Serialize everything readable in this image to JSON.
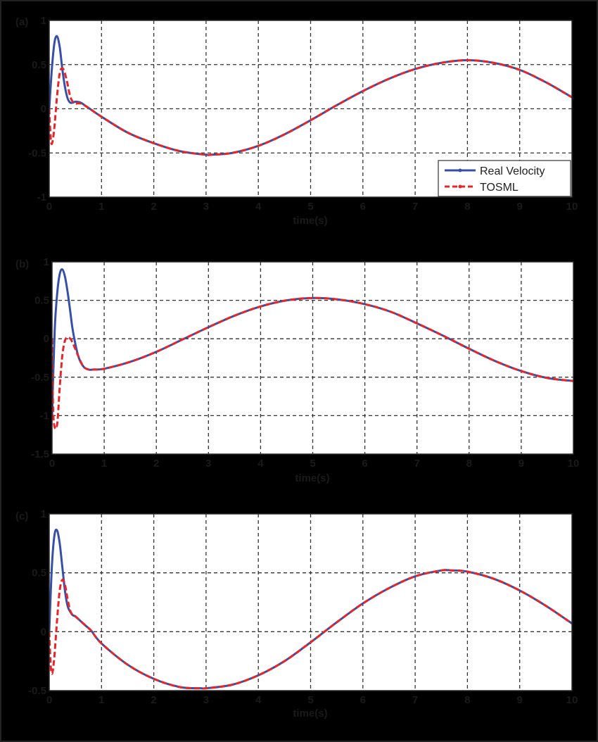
{
  "chart_data": [
    {
      "type": "line",
      "panel_label": "(a)",
      "title": "",
      "xlabel": "time(s)",
      "ylabel": "",
      "xlim": [
        0,
        10
      ],
      "ylim": [
        -1,
        1
      ],
      "xticks": [
        "0",
        "1",
        "2",
        "3",
        "4",
        "5",
        "6",
        "7",
        "8",
        "9",
        "10"
      ],
      "yticks": [
        "-1",
        "-0.5",
        "0",
        "0.5",
        "1"
      ],
      "grid": true,
      "legend": {
        "position": "lower right",
        "entries": [
          "Real Velocity",
          "TOSML"
        ]
      },
      "series": [
        {
          "name": "Real Velocity",
          "color": "#3650a8",
          "style": "solid",
          "x": [
            0,
            0.05,
            0.1,
            0.15,
            0.2,
            0.25,
            0.3,
            0.35,
            0.4,
            0.45,
            0.5,
            0.6,
            0.7,
            0.8,
            1,
            1.5,
            2,
            2.5,
            3,
            3.1,
            3.5,
            4,
            4.5,
            5,
            5.5,
            6,
            6.5,
            7,
            7.5,
            8,
            8.5,
            9,
            9.5,
            10
          ],
          "y": [
            0,
            0.45,
            0.75,
            0.82,
            0.7,
            0.45,
            0.25,
            0.12,
            0.07,
            0.07,
            0.08,
            0.07,
            0.03,
            -0.01,
            -0.09,
            -0.27,
            -0.39,
            -0.48,
            -0.52,
            -0.52,
            -0.5,
            -0.42,
            -0.29,
            -0.13,
            0.04,
            0.2,
            0.34,
            0.45,
            0.52,
            0.55,
            0.52,
            0.44,
            0.3,
            0.13
          ]
        },
        {
          "name": "TOSML",
          "color": "#e8262a",
          "style": "dashed",
          "x": [
            0,
            0.03,
            0.06,
            0.1,
            0.15,
            0.2,
            0.25,
            0.3,
            0.35,
            0.4,
            0.45,
            0.5,
            0.6,
            0.7,
            0.8,
            1,
            1.5,
            2,
            2.5,
            3,
            3.1,
            3.5,
            4,
            4.5,
            5,
            5.5,
            6,
            6.5,
            7,
            7.5,
            8,
            8.5,
            9,
            9.5,
            10
          ],
          "y": [
            0,
            -0.35,
            -0.38,
            -0.2,
            0.15,
            0.4,
            0.46,
            0.4,
            0.28,
            0.14,
            0.08,
            0.06,
            0.06,
            0.03,
            -0.01,
            -0.09,
            -0.27,
            -0.39,
            -0.48,
            -0.52,
            -0.52,
            -0.5,
            -0.42,
            -0.29,
            -0.13,
            0.04,
            0.2,
            0.34,
            0.45,
            0.52,
            0.55,
            0.52,
            0.44,
            0.3,
            0.13
          ]
        }
      ]
    },
    {
      "type": "line",
      "panel_label": "(b)",
      "title": "",
      "xlabel": "time(s)",
      "ylabel": "",
      "xlim": [
        0,
        10
      ],
      "ylim": [
        -1.5,
        1
      ],
      "xticks": [
        "0",
        "1",
        "2",
        "3",
        "4",
        "5",
        "6",
        "7",
        "8",
        "9",
        "10"
      ],
      "yticks": [
        "-1.5",
        "-1",
        "-0.5",
        "0",
        "0.5",
        "1"
      ],
      "grid": true,
      "series": [
        {
          "name": "Real Velocity",
          "color": "#3650a8",
          "style": "solid",
          "x": [
            0,
            0.05,
            0.1,
            0.15,
            0.2,
            0.25,
            0.3,
            0.35,
            0.4,
            0.5,
            0.6,
            0.7,
            0.8,
            1,
            1.5,
            2,
            2.5,
            3,
            3.5,
            4,
            4.5,
            5,
            5.5,
            6,
            6.5,
            7,
            7.5,
            8,
            8.5,
            9,
            9.5,
            10
          ],
          "y": [
            -1.0,
            0.1,
            0.6,
            0.85,
            0.9,
            0.8,
            0.6,
            0.35,
            0.1,
            -0.22,
            -0.36,
            -0.4,
            -0.4,
            -0.39,
            -0.3,
            -0.17,
            -0.01,
            0.15,
            0.3,
            0.42,
            0.5,
            0.53,
            0.51,
            0.45,
            0.35,
            0.2,
            0.04,
            -0.13,
            -0.29,
            -0.42,
            -0.51,
            -0.55
          ]
        },
        {
          "name": "TOSML",
          "color": "#e8262a",
          "style": "dashed",
          "x": [
            0,
            0.02,
            0.05,
            0.1,
            0.15,
            0.2,
            0.25,
            0.3,
            0.35,
            0.4,
            0.5,
            0.6,
            0.7,
            0.8,
            1,
            1.5,
            2,
            2.5,
            3,
            3.5,
            4,
            4.5,
            5,
            5.5,
            6,
            6.5,
            7,
            7.5,
            8,
            8.5,
            9,
            9.5,
            10
          ],
          "y": [
            0,
            -0.9,
            -1.15,
            -1.1,
            -0.6,
            -0.2,
            -0.02,
            0.02,
            0.0,
            -0.06,
            -0.22,
            -0.36,
            -0.4,
            -0.4,
            -0.39,
            -0.3,
            -0.17,
            -0.01,
            0.15,
            0.3,
            0.42,
            0.5,
            0.53,
            0.51,
            0.45,
            0.35,
            0.2,
            0.04,
            -0.13,
            -0.29,
            -0.42,
            -0.51,
            -0.55
          ]
        }
      ]
    },
    {
      "type": "line",
      "panel_label": "(c)",
      "title": "",
      "xlabel": "time(s)",
      "ylabel": "",
      "xlim": [
        0,
        10
      ],
      "ylim": [
        -0.5,
        1
      ],
      "xticks": [
        "0",
        "1",
        "2",
        "3",
        "4",
        "5",
        "6",
        "7",
        "8",
        "9",
        "10"
      ],
      "yticks": [
        "-0.5",
        "0",
        "0.5",
        "1"
      ],
      "grid": true,
      "series": [
        {
          "name": "Real Velocity",
          "color": "#3650a8",
          "style": "solid",
          "x": [
            0,
            0.05,
            0.1,
            0.15,
            0.2,
            0.25,
            0.3,
            0.35,
            0.4,
            0.45,
            0.5,
            0.6,
            0.7,
            0.8,
            1,
            1.5,
            2,
            2.5,
            2.9,
            3,
            3.5,
            4,
            4.5,
            5,
            5.5,
            6,
            6.5,
            7,
            7.5,
            7.7,
            8,
            8.5,
            9,
            9.5,
            10
          ],
          "y": [
            0,
            0.55,
            0.82,
            0.86,
            0.75,
            0.55,
            0.35,
            0.22,
            0.17,
            0.14,
            0.13,
            0.09,
            0.05,
            0.01,
            -0.1,
            -0.28,
            -0.4,
            -0.47,
            -0.48,
            -0.48,
            -0.45,
            -0.37,
            -0.25,
            -0.09,
            0.08,
            0.24,
            0.37,
            0.47,
            0.52,
            0.52,
            0.51,
            0.45,
            0.35,
            0.22,
            0.07
          ]
        },
        {
          "name": "TOSML",
          "color": "#e8262a",
          "style": "dashed",
          "x": [
            0,
            0.03,
            0.06,
            0.1,
            0.15,
            0.2,
            0.25,
            0.3,
            0.35,
            0.4,
            0.45,
            0.5,
            0.6,
            0.7,
            0.8,
            1,
            1.5,
            2,
            2.5,
            2.9,
            3,
            3.5,
            4,
            4.5,
            5,
            5.5,
            6,
            6.5,
            7,
            7.5,
            7.7,
            8,
            8.5,
            9,
            9.5,
            10
          ],
          "y": [
            0,
            -0.3,
            -0.35,
            -0.2,
            0.1,
            0.35,
            0.44,
            0.4,
            0.28,
            0.18,
            0.14,
            0.13,
            0.09,
            0.05,
            0.01,
            -0.1,
            -0.28,
            -0.4,
            -0.47,
            -0.48,
            -0.48,
            -0.45,
            -0.37,
            -0.25,
            -0.09,
            0.08,
            0.24,
            0.37,
            0.47,
            0.52,
            0.52,
            0.51,
            0.45,
            0.35,
            0.22,
            0.07
          ]
        }
      ]
    }
  ],
  "panels": [
    {
      "label": "(a)",
      "xlabel": "time(s)"
    },
    {
      "label": "(b)",
      "xlabel": "time(s)"
    },
    {
      "label": "(c)",
      "xlabel": "time(s)"
    }
  ],
  "legend": {
    "entries": [
      "Real Velocity",
      "TOSML"
    ]
  }
}
